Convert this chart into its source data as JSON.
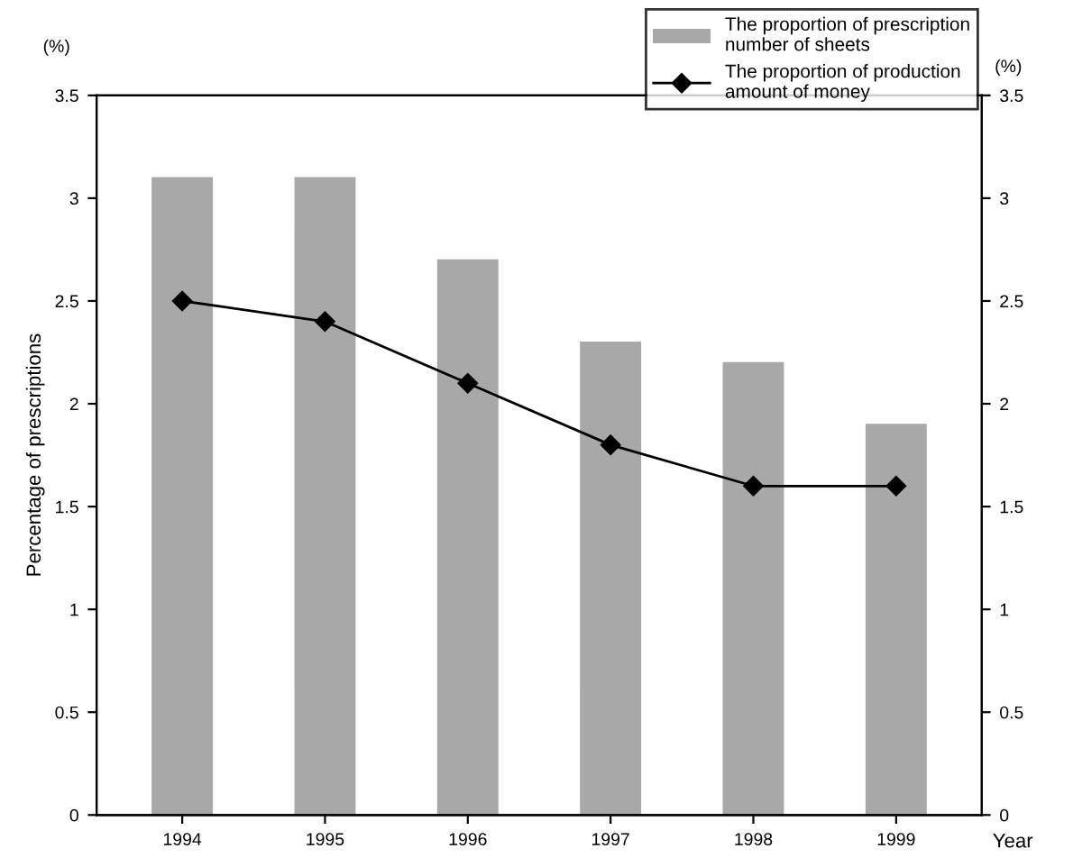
{
  "chart_data": {
    "type": "bar",
    "ylabel": "Percentage of prescriptions",
    "xlabel": "Year",
    "y2label": "(%)",
    "annotations": [
      "(%)"
    ],
    "categories": [
      "1994",
      "1995",
      "1996",
      "1997",
      "1998",
      "1999"
    ],
    "series": [
      {
        "name": "The proportion of prescription\nnumber of sheets",
        "color": "#a8a8a8",
        "values": [
          3.1,
          3.1,
          2.7,
          2.3,
          2.2,
          1.9
        ]
      },
      {
        "name": "The proportion of production\namount of money",
        "type": "line",
        "color": "#000000",
        "marker": "diamond",
        "values": [
          2.5,
          2.4,
          2.1,
          1.8,
          1.6,
          1.6
        ]
      }
    ],
    "ylim": [
      0,
      3.5
    ],
    "yticks": [
      0,
      0.5,
      1,
      1.5,
      2,
      2.5,
      3,
      3.5
    ],
    "y2lim": [
      0,
      3.5
    ],
    "y2ticks": [
      0,
      0.5,
      1,
      1.5,
      2,
      2.5,
      3,
      3.5
    ],
    "grid": false,
    "legend": "top right"
  }
}
